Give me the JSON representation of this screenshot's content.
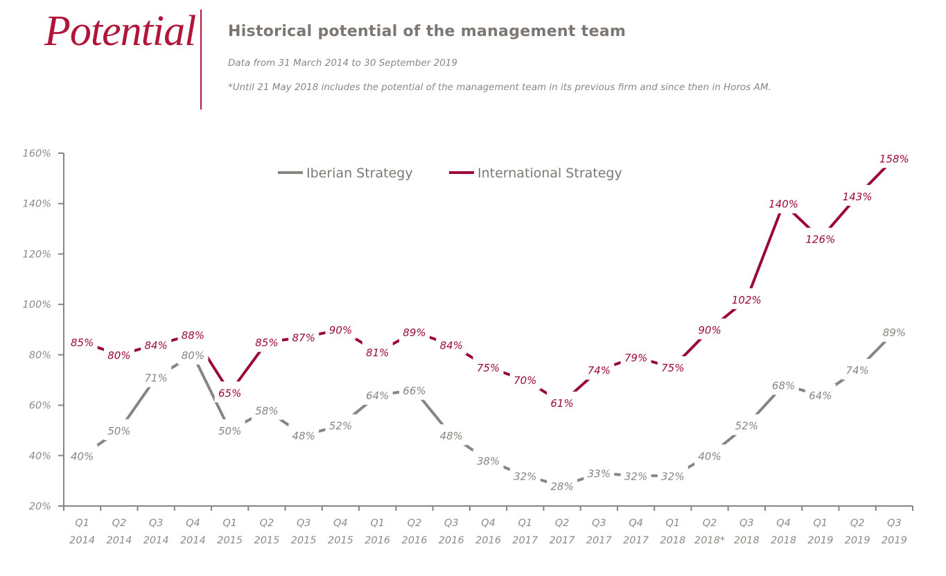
{
  "header": {
    "brand": "Potential",
    "title": "Historical potential of the management team",
    "subtitle": "Data from 31 March 2014 to 30 September 2019",
    "footnote": "*Until 21 May 2018 includes the potential of the management  team in its previous firm and since then in Horos AM."
  },
  "colors": {
    "brand": "#b0153a",
    "iberian": "#8a8480",
    "international": "#9b0a34",
    "axis": "#8a8480",
    "text": "#7d7773"
  },
  "chart_data": {
    "type": "line",
    "title": "Historical potential of the management team",
    "xlabel": "",
    "ylabel": "",
    "ylim": [
      20,
      160
    ],
    "yticks": [
      20,
      40,
      60,
      80,
      100,
      120,
      140,
      160
    ],
    "ytick_labels": [
      "20%",
      "40%",
      "60%",
      "80%",
      "100%",
      "120%",
      "140%",
      "160%"
    ],
    "grid": false,
    "legend_position": "top-center",
    "categories": [
      [
        "Q1",
        "2014"
      ],
      [
        "Q2",
        "2014"
      ],
      [
        "Q3",
        "2014"
      ],
      [
        "Q4",
        "2014"
      ],
      [
        "Q1",
        "2015"
      ],
      [
        "Q2",
        "2015"
      ],
      [
        "Q3",
        "2015"
      ],
      [
        "Q4",
        "2015"
      ],
      [
        "Q1",
        "2016"
      ],
      [
        "Q2",
        "2016"
      ],
      [
        "Q3",
        "2016"
      ],
      [
        "Q4",
        "2016"
      ],
      [
        "Q1",
        "2017"
      ],
      [
        "Q2",
        "2017"
      ],
      [
        "Q3",
        "2017"
      ],
      [
        "Q4",
        "2017"
      ],
      [
        "Q1",
        "2018"
      ],
      [
        "Q2",
        "2018*"
      ],
      [
        "Q3",
        "2018"
      ],
      [
        "Q4",
        "2018"
      ],
      [
        "Q1",
        "2019"
      ],
      [
        "Q2",
        "2019"
      ],
      [
        "Q3",
        "2019"
      ]
    ],
    "series": [
      {
        "name": "Iberian Strategy",
        "key": "iberian",
        "values": [
          40,
          50,
          71,
          80,
          50,
          58,
          48,
          52,
          64,
          66,
          48,
          38,
          32,
          28,
          33,
          32,
          32,
          40,
          52,
          68,
          64,
          74,
          89
        ]
      },
      {
        "name": "International Strategy",
        "key": "international",
        "values": [
          85,
          80,
          84,
          88,
          65,
          85,
          87,
          90,
          81,
          89,
          84,
          75,
          70,
          61,
          74,
          79,
          75,
          90,
          102,
          140,
          126,
          143,
          158
        ]
      }
    ]
  }
}
